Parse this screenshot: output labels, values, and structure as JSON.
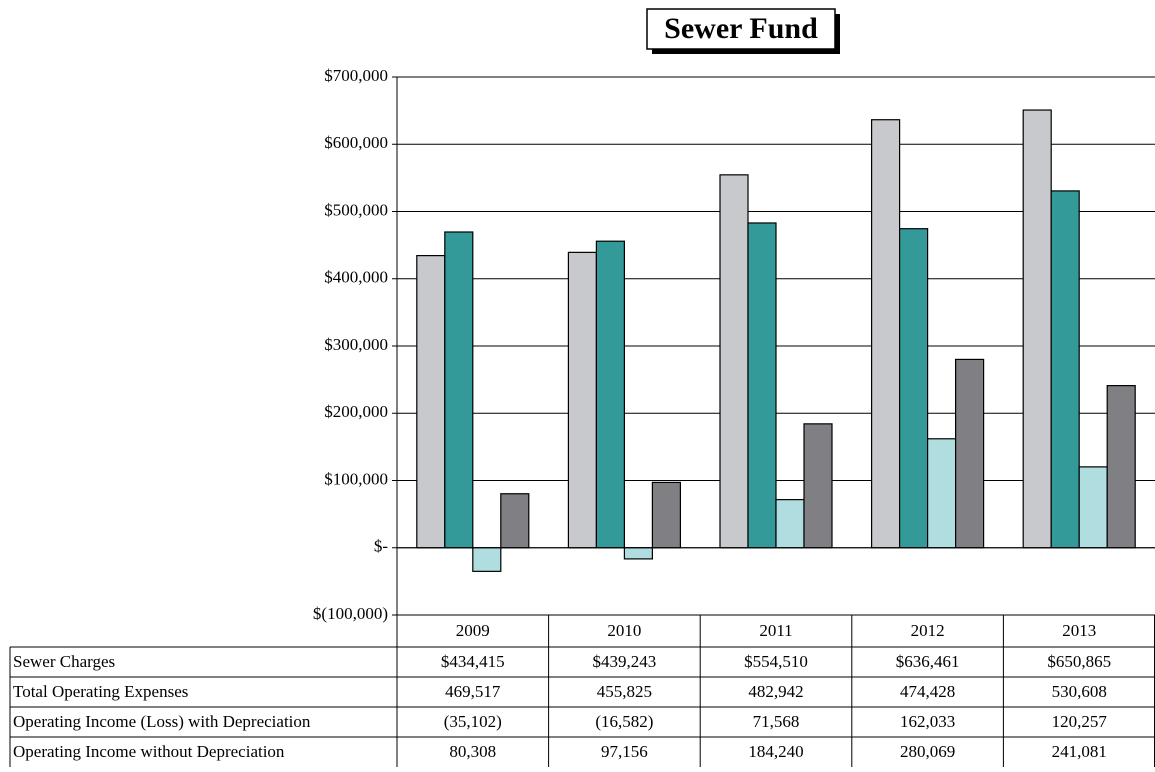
{
  "chart_data": {
    "type": "bar",
    "title": "Sewer Fund",
    "categories": [
      "2009",
      "2010",
      "2011",
      "2012",
      "2013"
    ],
    "series": [
      {
        "name": "Sewer Charges",
        "color": "#c8c9cc",
        "values": [
          434415,
          439243,
          554510,
          636461,
          650865
        ],
        "value_labels": [
          "$434,415",
          "$439,243",
          "$554,510",
          "$636,461",
          "$650,865"
        ]
      },
      {
        "name": "Total Operating Expenses",
        "color": "#339999",
        "values": [
          469517,
          455825,
          482942,
          474428,
          530608
        ],
        "value_labels": [
          "469,517",
          "455,825",
          "482,942",
          "474,428",
          "530,608"
        ]
      },
      {
        "name": "Operating Income (Loss) with Depreciation",
        "color": "#b0dde0",
        "values": [
          -35102,
          -16582,
          71568,
          162033,
          120257
        ],
        "value_labels": [
          "(35,102)",
          "(16,582)",
          "71,568",
          "162,033",
          "120,257"
        ]
      },
      {
        "name": "Operating Income without Depreciation",
        "color": "#808084",
        "values": [
          80308,
          97156,
          184240,
          280069,
          241081
        ],
        "value_labels": [
          "80,308",
          "97,156",
          "184,240",
          "280,069",
          "241,081"
        ]
      }
    ],
    "ylim": [
      -100000,
      700000
    ],
    "yticks": [
      {
        "value": -100000,
        "label": "$(100,000)"
      },
      {
        "value": 0,
        "label": "$-"
      },
      {
        "value": 100000,
        "label": "$100,000"
      },
      {
        "value": 200000,
        "label": "$200,000"
      },
      {
        "value": 300000,
        "label": "$300,000"
      },
      {
        "value": 400000,
        "label": "$400,000"
      },
      {
        "value": 500000,
        "label": "$500,000"
      },
      {
        "value": 600000,
        "label": "$600,000"
      },
      {
        "value": 700000,
        "label": "$700,000"
      }
    ],
    "grid": true
  }
}
